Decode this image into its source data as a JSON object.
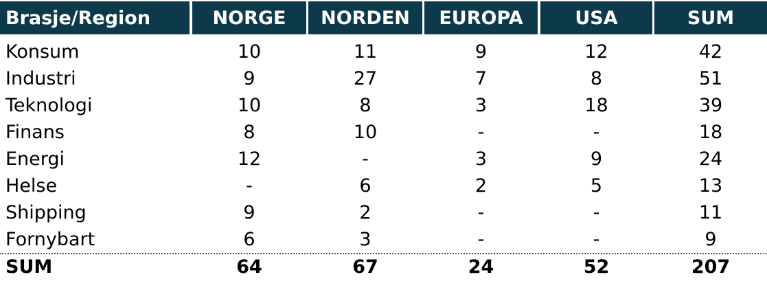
{
  "table": {
    "header": [
      "Brasje/Region",
      "NORGE",
      "NORDEN",
      "EUROPA",
      "USA",
      "SUM"
    ],
    "rows": [
      [
        "Konsum",
        10,
        11,
        9,
        12,
        42
      ],
      [
        "Industri",
        9,
        27,
        7,
        8,
        51
      ],
      [
        "Teknologi",
        10,
        8,
        3,
        18,
        39
      ],
      [
        "Finans",
        8,
        10,
        "-",
        "-",
        18
      ],
      [
        "Energi",
        12,
        "-",
        3,
        9,
        24
      ],
      [
        "Helse",
        "-",
        6,
        2,
        5,
        13
      ],
      [
        "Shipping",
        9,
        2,
        "-",
        "-",
        11
      ],
      [
        "Fornybart",
        6,
        3,
        "-",
        "-",
        9
      ]
    ],
    "total_row": [
      "SUM",
      64,
      67,
      24,
      52,
      207
    ]
  }
}
